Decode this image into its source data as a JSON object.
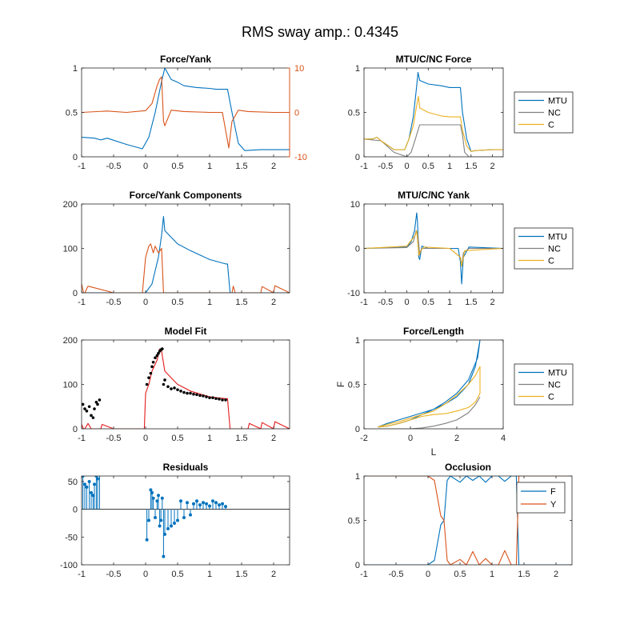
{
  "figure": {
    "suptitle": "RMS sway amp.: 0.4345",
    "colors": {
      "blue": "#0072BD",
      "orange": "#D95319",
      "yellow": "#EDB120",
      "gray": "#808080",
      "red": "#E41A1C",
      "black": "#000000"
    }
  },
  "chart_data": [
    {
      "id": "force_yank",
      "title": "Force/Yank",
      "type": "line",
      "xlim": [
        -1,
        2.25
      ],
      "xticks": [
        -1,
        -0.5,
        0,
        0.5,
        1,
        1.5,
        2
      ],
      "ylim": [
        0,
        1
      ],
      "yticks": [
        0,
        0.5,
        1
      ],
      "ylim_right": [
        -10,
        10
      ],
      "yticks_right": [
        -10,
        0,
        10
      ],
      "series": [
        {
          "color": "blue",
          "axis": "left",
          "x": [
            -1,
            -0.8,
            -0.7,
            -0.6,
            -0.3,
            -0.05,
            0.05,
            0.15,
            0.25,
            0.3,
            0.4,
            0.5,
            0.6,
            0.8,
            1.0,
            1.1,
            1.25,
            1.28,
            1.35,
            1.45,
            1.55,
            1.8,
            2.0,
            2.25
          ],
          "y": [
            0.22,
            0.21,
            0.19,
            0.21,
            0.14,
            0.09,
            0.22,
            0.5,
            0.85,
            1.0,
            0.87,
            0.84,
            0.8,
            0.78,
            0.77,
            0.76,
            0.76,
            0.76,
            0.5,
            0.15,
            0.07,
            0.08,
            0.08,
            0.08
          ]
        },
        {
          "color": "orange",
          "axis": "right",
          "x": [
            -1,
            -0.6,
            -0.3,
            0,
            0.1,
            0.18,
            0.22,
            0.25,
            0.28,
            0.3,
            0.4,
            0.6,
            1.0,
            1.2,
            1.25,
            1.3,
            1.35,
            1.45,
            1.6,
            2.0,
            2.25
          ],
          "y": [
            0,
            0.3,
            0,
            0.4,
            2,
            6,
            7.5,
            8,
            -2,
            -3,
            0.5,
            0.2,
            0,
            0,
            -4,
            -8,
            -2,
            0.5,
            0.2,
            0,
            0
          ]
        }
      ]
    },
    {
      "id": "mtu_force",
      "title": "MTU/C/NC Force",
      "type": "line",
      "xlim": [
        -1,
        2.25
      ],
      "xticks": [
        -1,
        -0.5,
        0,
        0.5,
        1,
        1.5,
        2
      ],
      "ylim": [
        0,
        1
      ],
      "yticks": [
        0,
        0.5,
        1
      ],
      "legend": [
        "MTU",
        "NC",
        "C"
      ],
      "series": [
        {
          "name": "MTU",
          "color": "blue",
          "x": [
            -1,
            -0.8,
            -0.7,
            -0.6,
            -0.3,
            -0.05,
            0.05,
            0.15,
            0.22,
            0.26,
            0.3,
            0.5,
            0.8,
            1.0,
            1.25,
            1.3,
            1.4,
            1.5,
            1.6,
            2.0,
            2.25
          ],
          "y": [
            0.2,
            0.2,
            0.22,
            0.18,
            0.08,
            0.08,
            0.2,
            0.45,
            0.75,
            0.95,
            0.86,
            0.82,
            0.8,
            0.78,
            0.78,
            0.5,
            0.2,
            0.06,
            0.07,
            0.08,
            0.08
          ]
        },
        {
          "name": "NC",
          "color": "gray",
          "x": [
            -1,
            -0.6,
            -0.3,
            0,
            0.1,
            0.2,
            0.3,
            0.5,
            1.0,
            1.25,
            1.3,
            1.35,
            1.45,
            1.6,
            2.25
          ],
          "y": [
            0.2,
            0.18,
            0.05,
            0.0,
            0.05,
            0.2,
            0.36,
            0.36,
            0.36,
            0.36,
            0.25,
            0.05,
            0.0,
            0.0,
            0.0
          ]
        },
        {
          "name": "C",
          "color": "yellow",
          "x": [
            -1,
            -0.8,
            -0.7,
            -0.6,
            -0.3,
            -0.05,
            0.05,
            0.15,
            0.22,
            0.27,
            0.3,
            0.5,
            0.8,
            1.0,
            1.25,
            1.3,
            1.4,
            1.5,
            1.6,
            2.0,
            2.25
          ],
          "y": [
            0.2,
            0.2,
            0.22,
            0.18,
            0.08,
            0.08,
            0.2,
            0.35,
            0.55,
            0.68,
            0.55,
            0.5,
            0.46,
            0.45,
            0.45,
            0.3,
            0.12,
            0.06,
            0.07,
            0.08,
            0.08
          ]
        }
      ]
    },
    {
      "id": "components",
      "title": "Force/Yank Components",
      "type": "line",
      "xlim": [
        -1,
        2.25
      ],
      "xticks": [
        -1,
        -0.5,
        0,
        0.5,
        1,
        1.5,
        2
      ],
      "ylim": [
        0,
        200
      ],
      "yticks": [
        0,
        100,
        200
      ],
      "series": [
        {
          "color": "blue",
          "x": [
            -1,
            0,
            0.1,
            0.2,
            0.25,
            0.28,
            0.3,
            0.4,
            0.5,
            0.7,
            1.0,
            1.25,
            1.28,
            1.32,
            2.25
          ],
          "y": [
            0,
            0,
            20,
            80,
            130,
            172,
            140,
            125,
            110,
            95,
            75,
            65,
            65,
            0,
            0
          ]
        },
        {
          "color": "orange",
          "x": [
            -1,
            -0.97,
            -0.95,
            -0.9,
            -0.5,
            -0.05,
            0,
            0.05,
            0.08,
            0.12,
            0.15,
            0.2,
            0.25,
            0.28,
            0.3,
            0.5,
            1.0,
            1.35,
            1.37,
            1.4,
            1.8,
            1.82,
            2.0,
            2.02,
            2.25
          ],
          "y": [
            20,
            0,
            0,
            15,
            0,
            0,
            80,
            105,
            110,
            90,
            105,
            90,
            100,
            0,
            0,
            0,
            0,
            0,
            15,
            0,
            0,
            14,
            0,
            16,
            0
          ]
        }
      ]
    },
    {
      "id": "mtu_yank",
      "title": "MTU/C/NC Yank",
      "type": "line",
      "xlim": [
        -1,
        2.25
      ],
      "xticks": [
        -1,
        -0.5,
        0,
        0.5,
        1,
        1.5,
        2
      ],
      "ylim": [
        -10,
        10
      ],
      "yticks": [
        -10,
        0,
        10
      ],
      "legend": [
        "MTU",
        "NC",
        "C"
      ],
      "series": [
        {
          "name": "MTU",
          "color": "blue",
          "x": [
            -1,
            0,
            0.1,
            0.18,
            0.23,
            0.25,
            0.28,
            0.3,
            0.35,
            0.5,
            1.0,
            1.2,
            1.25,
            1.28,
            1.32,
            1.45,
            2.25
          ],
          "y": [
            0,
            0.3,
            1.5,
            4,
            8,
            6,
            -2,
            -2.5,
            0.5,
            0,
            0,
            0,
            -3,
            -8,
            -2,
            0.3,
            0
          ]
        },
        {
          "name": "NC",
          "color": "gray",
          "x": [
            -1,
            0,
            0.15,
            0.22,
            0.26,
            0.3,
            0.35,
            1.0,
            1.25,
            1.28,
            1.32,
            1.45,
            2.25
          ],
          "y": [
            0,
            0.2,
            1.5,
            4,
            3,
            -1.5,
            0,
            0,
            -2,
            -4,
            -1,
            0,
            0
          ]
        },
        {
          "name": "C",
          "color": "yellow",
          "x": [
            -1,
            0,
            0.1,
            0.2,
            0.23,
            0.28,
            0.32,
            0.4,
            1.0,
            1.25,
            1.28,
            1.35,
            2.25
          ],
          "y": [
            0,
            0.5,
            1.8,
            3,
            4,
            -1.5,
            -0.5,
            0.3,
            0,
            -2,
            -4,
            -0.5,
            0
          ]
        }
      ]
    },
    {
      "id": "model_fit",
      "title": "Model Fit",
      "type": "line",
      "xlim": [
        -1,
        2.25
      ],
      "xticks": [
        -1,
        -0.5,
        0,
        0.5,
        1,
        1.5,
        2
      ],
      "ylim": [
        0,
        200
      ],
      "yticks": [
        0,
        100,
        200
      ],
      "series": [
        {
          "color": "red",
          "x": [
            -1,
            -0.97,
            -0.95,
            -0.9,
            -0.85,
            -0.7,
            -0.68,
            -0.5,
            -0.02,
            0,
            0.05,
            0.1,
            0.18,
            0.22,
            0.25,
            0.3,
            0.4,
            0.5,
            0.7,
            1.0,
            1.25,
            1.28,
            1.32,
            1.6,
            1.62,
            1.8,
            1.82,
            2.0,
            2.02,
            2.25
          ],
          "y": [
            10,
            0,
            0,
            12,
            0,
            0,
            10,
            0,
            0,
            80,
            100,
            130,
            155,
            180,
            175,
            130,
            115,
            100,
            85,
            72,
            68,
            68,
            0,
            0,
            12,
            0,
            14,
            0,
            16,
            0
          ]
        },
        {
          "color": "black",
          "markers": true,
          "x": [
            -0.98,
            -0.95,
            -0.92,
            -0.88,
            -0.85,
            -0.82,
            -0.8,
            -0.77,
            -0.75,
            -0.72,
            0.02,
            0.05,
            0.08,
            0.1,
            0.12,
            0.15,
            0.18,
            0.2,
            0.22,
            0.24,
            0.26,
            0.28,
            0.3,
            0.35,
            0.4,
            0.45,
            0.5,
            0.55,
            0.6,
            0.65,
            0.7,
            0.75,
            0.8,
            0.85,
            0.9,
            0.95,
            1.0,
            1.05,
            1.1,
            1.15,
            1.2,
            1.25
          ],
          "y": [
            55,
            45,
            40,
            50,
            30,
            25,
            45,
            60,
            55,
            65,
            100,
            115,
            125,
            140,
            150,
            160,
            165,
            170,
            175,
            178,
            180,
            100,
            110,
            95,
            90,
            92,
            88,
            85,
            82,
            80,
            80,
            78,
            77,
            75,
            74,
            72,
            70,
            70,
            68,
            67,
            65,
            65
          ]
        }
      ]
    },
    {
      "id": "force_length",
      "title": "Force/Length",
      "type": "line",
      "xlabel": "L",
      "ylabel": "F",
      "xlim": [
        -2,
        4
      ],
      "xticks": [
        -2,
        0,
        2,
        4
      ],
      "ylim": [
        0,
        1
      ],
      "yticks": [
        0,
        0.5,
        1
      ],
      "legend": [
        "MTU",
        "NC",
        "C"
      ],
      "series": [
        {
          "name": "MTU",
          "color": "blue",
          "x": [
            -1.4,
            -1.0,
            -0.5,
            0.0,
            0.5,
            1.0,
            1.5,
            2.0,
            2.5,
            2.8,
            3.0,
            2.9,
            2.5,
            2.0,
            1.5,
            1.0,
            0.5,
            0.0,
            -0.5,
            -1.0,
            -1.4
          ],
          "y": [
            0.02,
            0.06,
            0.1,
            0.14,
            0.18,
            0.22,
            0.28,
            0.36,
            0.5,
            0.7,
            1.0,
            0.8,
            0.55,
            0.4,
            0.3,
            0.22,
            0.16,
            0.1,
            0.06,
            0.03,
            0.02
          ]
        },
        {
          "name": "NC",
          "color": "gray",
          "x": [
            -1.4,
            -0.5,
            0,
            0.5,
            1.0,
            1.5,
            2.0,
            2.5,
            2.8,
            3.0
          ],
          "y": [
            0,
            0,
            0,
            0.01,
            0.03,
            0.06,
            0.1,
            0.18,
            0.27,
            0.36
          ]
        },
        {
          "name": "C",
          "color": "yellow",
          "x": [
            -1.4,
            -1.0,
            -0.5,
            0.0,
            0.5,
            1.0,
            1.5,
            2.0,
            2.5,
            2.8,
            3.0,
            3.0,
            2.8,
            2.5,
            2.0,
            1.5,
            1.0,
            0.5,
            0.0,
            -0.5,
            -1.0,
            -1.4
          ],
          "y": [
            0.02,
            0.05,
            0.08,
            0.12,
            0.16,
            0.2,
            0.28,
            0.38,
            0.5,
            0.6,
            0.7,
            0.4,
            0.3,
            0.24,
            0.2,
            0.17,
            0.16,
            0.14,
            0.1,
            0.06,
            0.03,
            0.02
          ]
        }
      ]
    },
    {
      "id": "residuals",
      "title": "Residuals",
      "type": "stem",
      "xlim": [
        -1,
        2.25
      ],
      "xticks": [
        -1,
        -0.5,
        0,
        0.5,
        1,
        1.5,
        2
      ],
      "ylim": [
        -100,
        60
      ],
      "yticks": [
        -100,
        -50,
        0,
        50
      ],
      "series": [
        {
          "color": "blue",
          "x": [
            -0.98,
            -0.95,
            -0.92,
            -0.88,
            -0.85,
            -0.82,
            -0.8,
            -0.77,
            -0.75,
            -0.72,
            0.02,
            0.05,
            0.08,
            0.1,
            0.12,
            0.15,
            0.18,
            0.2,
            0.22,
            0.24,
            0.26,
            0.28,
            0.3,
            0.35,
            0.4,
            0.45,
            0.5,
            0.55,
            0.6,
            0.65,
            0.7,
            0.75,
            0.8,
            0.85,
            0.9,
            0.95,
            1.0,
            1.05,
            1.1,
            1.15,
            1.2,
            1.25
          ],
          "y": [
            60,
            45,
            40,
            50,
            30,
            25,
            45,
            60,
            55,
            62,
            -55,
            -20,
            35,
            30,
            20,
            -15,
            15,
            25,
            -30,
            -20,
            20,
            -85,
            -45,
            -35,
            -30,
            -25,
            -20,
            15,
            -15,
            12,
            -10,
            10,
            15,
            8,
            12,
            10,
            6,
            15,
            12,
            8,
            10,
            5
          ]
        }
      ]
    },
    {
      "id": "occlusion",
      "title": "Occlusion",
      "type": "line",
      "xlim": [
        -1,
        2.25
      ],
      "xticks": [
        -1,
        -0.5,
        0,
        0.5,
        1,
        1.5,
        2
      ],
      "ylim": [
        0,
        1
      ],
      "yticks": [
        0,
        0.5,
        1
      ],
      "legend": [
        "F",
        "Y"
      ],
      "series": [
        {
          "name": "F",
          "color": "blue",
          "x": [
            -1,
            0.0,
            0.1,
            0.2,
            0.25,
            0.3,
            0.35,
            0.5,
            0.6,
            0.7,
            0.8,
            0.9,
            1.0,
            1.1,
            1.2,
            1.3,
            1.38,
            1.42,
            1.45,
            2.25
          ],
          "y": [
            0,
            0,
            0.05,
            0.45,
            0.5,
            0.95,
            1,
            0.93,
            1,
            0.95,
            1,
            0.93,
            1,
            1,
            0.94,
            1,
            1,
            0,
            0,
            0
          ]
        },
        {
          "name": "Y",
          "color": "orange",
          "x": [
            -1,
            0.0,
            0.1,
            0.2,
            0.25,
            0.3,
            0.35,
            0.5,
            0.6,
            0.7,
            0.8,
            0.9,
            1.0,
            1.1,
            1.2,
            1.3,
            1.38,
            1.42,
            1.45,
            2.25
          ],
          "y": [
            1,
            1,
            0.95,
            0.55,
            0.5,
            0.05,
            0,
            0.06,
            0,
            0.15,
            0,
            0.07,
            0,
            0,
            0.16,
            0,
            0,
            1,
            1,
            1
          ]
        }
      ]
    }
  ]
}
